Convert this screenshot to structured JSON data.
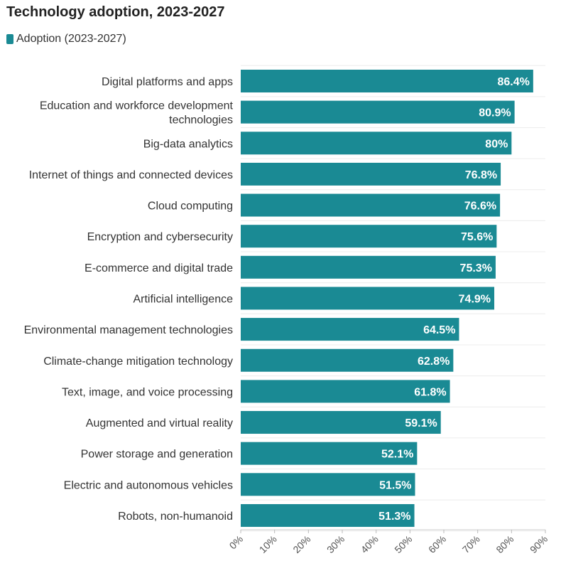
{
  "chart_data": {
    "type": "bar",
    "orientation": "horizontal",
    "title": "Technology adoption, 2023-2027",
    "legend": [
      {
        "label": "Adoption (2023-2027)",
        "color": "#1a8a94"
      }
    ],
    "legend_position": "top-left",
    "categories": [
      "Digital platforms and apps",
      "Education and workforce development technologies",
      "Big-data analytics",
      "Internet of things and connected devices",
      "Cloud computing",
      "Encryption and cybersecurity",
      "E-commerce and digital trade",
      "Artificial intelligence",
      "Environmental management technologies",
      "Climate-change mitigation technology",
      "Text, image, and voice processing",
      "Augmented and virtual reality",
      "Power storage and generation",
      "Electric and autonomous vehicles",
      "Robots, non-humanoid"
    ],
    "category_lines": [
      [
        "Digital platforms and apps"
      ],
      [
        "Education and workforce development",
        "technologies"
      ],
      [
        "Big-data analytics"
      ],
      [
        "Internet of things and connected devices"
      ],
      [
        "Cloud computing"
      ],
      [
        "Encryption and cybersecurity"
      ],
      [
        "E-commerce and digital trade"
      ],
      [
        "Artificial intelligence"
      ],
      [
        "Environmental management technologies"
      ],
      [
        "Climate-change mitigation technology"
      ],
      [
        "Text, image, and voice processing"
      ],
      [
        "Augmented and virtual reality"
      ],
      [
        "Power storage and generation"
      ],
      [
        "Electric and autonomous vehicles"
      ],
      [
        "Robots, non-humanoid"
      ]
    ],
    "values": [
      86.4,
      80.9,
      80,
      76.8,
      76.6,
      75.6,
      75.3,
      74.9,
      64.5,
      62.8,
      61.8,
      59.1,
      52.1,
      51.5,
      51.3
    ],
    "value_labels": [
      "86.4%",
      "80.9%",
      "80%",
      "76.8%",
      "76.6%",
      "75.6%",
      "75.3%",
      "74.9%",
      "64.5%",
      "62.8%",
      "61.8%",
      "59.1%",
      "52.1%",
      "51.5%",
      "51.3%"
    ],
    "xlim": [
      0,
      90
    ],
    "xticks": [
      0,
      10,
      20,
      30,
      40,
      50,
      60,
      70,
      80,
      90
    ],
    "xtick_labels": [
      "0%",
      "10%",
      "20%",
      "30%",
      "40%",
      "50%",
      "60%",
      "70%",
      "80%",
      "90%"
    ],
    "xlabel": "",
    "ylabel": "",
    "grid": true,
    "bar_color": "#1a8a94",
    "label_color": "#ffffff"
  }
}
